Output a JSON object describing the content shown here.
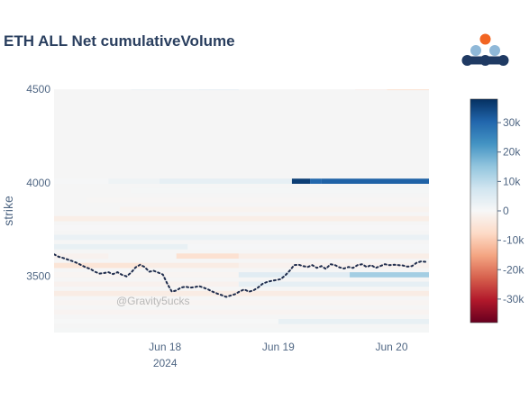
{
  "chart_data": {
    "type": "heatmap",
    "title": "ETH ALL Net cumulativeVolume",
    "ylabel": "strike",
    "xlabel": "",
    "x_ticks": [
      {
        "label": "Jun 18",
        "sublabel": "2024",
        "day": 18
      },
      {
        "label": "Jun 19",
        "sublabel": "",
        "day": 19
      },
      {
        "label": "Jun 20",
        "sublabel": "",
        "day": 20
      }
    ],
    "x_range_days": [
      17.02,
      20.33
    ],
    "y_ticks": [
      3500,
      4000,
      4500
    ],
    "ylim": [
      3200,
      4500
    ],
    "colorbar": {
      "ticks": [
        30000,
        20000,
        10000,
        0,
        -10000,
        -20000,
        -30000
      ],
      "tick_labels": [
        "30k",
        "20k",
        "10k",
        "0",
        "-10k",
        "-20k",
        "-30k"
      ],
      "range": [
        -38000,
        38000
      ],
      "colorscale": [
        "#67001f",
        "#b2182b",
        "#d6604d",
        "#f4a582",
        "#fddbc7",
        "#f7f7f7",
        "#d1e5f0",
        "#92c5de",
        "#4393c3",
        "#2166ac",
        "#053061"
      ]
    },
    "heatmap_cells": [
      {
        "strike": 4500,
        "x0": 17.02,
        "x1": 20.33,
        "value": 300
      },
      {
        "strike": 4500,
        "x0": 17.7,
        "x1": 18.3,
        "value": 1800
      },
      {
        "strike": 4500,
        "x0": 18.3,
        "x1": 18.65,
        "value": 2500
      },
      {
        "strike": 4500,
        "x0": 19.68,
        "x1": 19.96,
        "value": -1500
      },
      {
        "strike": 4500,
        "x0": 19.96,
        "x1": 20.33,
        "value": -5000
      },
      {
        "strike": 4000,
        "x0": 17.02,
        "x1": 17.5,
        "value": 400
      },
      {
        "strike": 4000,
        "x0": 17.5,
        "x1": 17.95,
        "value": 1800
      },
      {
        "strike": 4000,
        "x0": 17.95,
        "x1": 19.12,
        "value": 3500
      },
      {
        "strike": 4000,
        "x0": 19.12,
        "x1": 19.28,
        "value": 36000
      },
      {
        "strike": 4000,
        "x0": 19.28,
        "x1": 19.38,
        "value": 30000
      },
      {
        "strike": 4000,
        "x0": 19.38,
        "x1": 20.33,
        "value": 31000
      },
      {
        "strike": 3950,
        "x0": 17.7,
        "x1": 20.33,
        "value": 600
      },
      {
        "strike": 3900,
        "x0": 17.3,
        "x1": 20.33,
        "value": -500
      },
      {
        "strike": 3850,
        "x0": 17.6,
        "x1": 20.33,
        "value": -1200
      },
      {
        "strike": 3800,
        "x0": 17.02,
        "x1": 20.33,
        "value": -2500
      },
      {
        "strike": 3750,
        "x0": 17.02,
        "x1": 20.33,
        "value": 300
      },
      {
        "strike": 3700,
        "x0": 17.02,
        "x1": 20.33,
        "value": 2500
      },
      {
        "strike": 3650,
        "x0": 17.02,
        "x1": 18.2,
        "value": 3000
      },
      {
        "strike": 3650,
        "x0": 18.2,
        "x1": 20.33,
        "value": 500
      },
      {
        "strike": 3600,
        "x0": 17.02,
        "x1": 17.5,
        "value": -1500
      },
      {
        "strike": 3600,
        "x0": 18.1,
        "x1": 18.65,
        "value": -6000
      },
      {
        "strike": 3600,
        "x0": 18.65,
        "x1": 20.33,
        "value": -2500
      },
      {
        "strike": 3550,
        "x0": 17.02,
        "x1": 17.8,
        "value": -5000
      },
      {
        "strike": 3550,
        "x0": 17.8,
        "x1": 18.65,
        "value": -3000
      },
      {
        "strike": 3550,
        "x0": 18.65,
        "x1": 20.33,
        "value": -1500
      },
      {
        "strike": 3500,
        "x0": 17.02,
        "x1": 18.65,
        "value": -800
      },
      {
        "strike": 3500,
        "x0": 18.65,
        "x1": 19.63,
        "value": 4500
      },
      {
        "strike": 3500,
        "x0": 19.63,
        "x1": 20.33,
        "value": 13000
      },
      {
        "strike": 3450,
        "x0": 17.02,
        "x1": 18.65,
        "value": -1500
      },
      {
        "strike": 3450,
        "x0": 18.65,
        "x1": 20.33,
        "value": 3500
      },
      {
        "strike": 3400,
        "x0": 17.02,
        "x1": 20.33,
        "value": -3000
      },
      {
        "strike": 3350,
        "x0": 17.02,
        "x1": 20.33,
        "value": -800
      },
      {
        "strike": 3300,
        "x0": 17.02,
        "x1": 20.33,
        "value": -1000
      },
      {
        "strike": 3250,
        "x0": 17.02,
        "x1": 19.0,
        "value": 200
      },
      {
        "strike": 3250,
        "x0": 19.0,
        "x1": 20.33,
        "value": 3000
      },
      {
        "strike": 3200,
        "x0": 17.02,
        "x1": 20.33,
        "value": 600
      }
    ],
    "price_series": {
      "style": "dotted",
      "color": "#1f2d4d",
      "x": [
        17.02,
        17.06,
        17.1,
        17.14,
        17.18,
        17.22,
        17.26,
        17.3,
        17.34,
        17.38,
        17.42,
        17.46,
        17.5,
        17.54,
        17.58,
        17.62,
        17.66,
        17.7,
        17.74,
        17.78,
        17.82,
        17.86,
        17.9,
        17.94,
        17.98,
        18.02,
        18.06,
        18.1,
        18.14,
        18.18,
        18.22,
        18.26,
        18.3,
        18.34,
        18.38,
        18.42,
        18.46,
        18.5,
        18.54,
        18.58,
        18.62,
        18.66,
        18.7,
        18.74,
        18.78,
        18.82,
        18.86,
        18.9,
        18.94,
        18.98,
        19.02,
        19.06,
        19.1,
        19.14,
        19.18,
        19.22,
        19.26,
        19.3,
        19.34,
        19.38,
        19.42,
        19.46,
        19.5,
        19.54,
        19.58,
        19.62,
        19.66,
        19.7,
        19.74,
        19.78,
        19.82,
        19.86,
        19.9,
        19.94,
        19.98,
        20.02,
        20.06,
        20.1,
        20.14,
        20.18,
        20.22,
        20.26,
        20.3
      ],
      "y": [
        3618,
        3605,
        3598,
        3590,
        3582,
        3572,
        3560,
        3548,
        3540,
        3525,
        3515,
        3518,
        3522,
        3512,
        3522,
        3508,
        3500,
        3520,
        3548,
        3562,
        3550,
        3525,
        3530,
        3520,
        3510,
        3460,
        3418,
        3425,
        3440,
        3445,
        3440,
        3442,
        3448,
        3440,
        3430,
        3418,
        3408,
        3400,
        3390,
        3398,
        3405,
        3420,
        3430,
        3418,
        3425,
        3440,
        3460,
        3470,
        3476,
        3480,
        3485,
        3505,
        3530,
        3560,
        3562,
        3555,
        3550,
        3560,
        3545,
        3555,
        3540,
        3565,
        3560,
        3548,
        3542,
        3550,
        3545,
        3560,
        3565,
        3550,
        3560,
        3545,
        3555,
        3565,
        3560,
        3562,
        3560,
        3558,
        3552,
        3555,
        3572,
        3580,
        3578
      ]
    },
    "watermark": "@Gravity5ucks"
  },
  "logo": {
    "top_dot_color": "#f26522",
    "mid_dot_color": "#8fb8d8",
    "base_color": "#1f3a63"
  }
}
